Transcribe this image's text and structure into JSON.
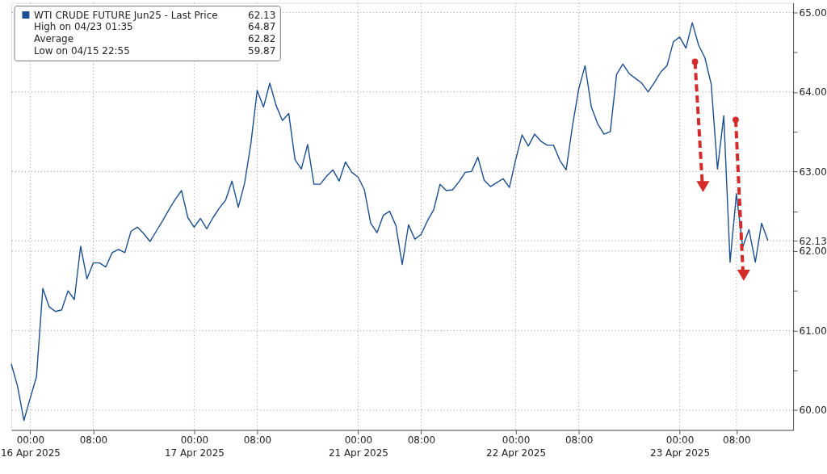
{
  "chart_data": {
    "type": "line",
    "categories": [
      null,
      null,
      null,
      "00:00\n16 Apr 2025",
      null,
      null,
      null,
      null,
      null,
      null,
      null,
      null,
      null,
      "08:00",
      null,
      null,
      null,
      null,
      null,
      null,
      null,
      null,
      null,
      null,
      null,
      null,
      null,
      null,
      null,
      "00:00\n17 Apr 2025",
      null,
      null,
      null,
      null,
      null,
      null,
      null,
      null,
      null,
      "08:00",
      null,
      null,
      null,
      null,
      null,
      null,
      null,
      null,
      null,
      null,
      null,
      null,
      null,
      null,
      null,
      "00:00\n21 Apr 2025",
      null,
      null,
      null,
      null,
      null,
      null,
      null,
      null,
      null,
      "08:00",
      null,
      null,
      null,
      null,
      null,
      null,
      null,
      null,
      null,
      null,
      null,
      null,
      null,
      null,
      "00:00\n22 Apr 2025",
      null,
      null,
      null,
      null,
      null,
      null,
      null,
      null,
      null,
      "08:00",
      null,
      null,
      null,
      null,
      null,
      null,
      null,
      null,
      null,
      null,
      null,
      null,
      null,
      null,
      null,
      "00:00\n23 Apr 2025",
      null,
      null,
      null,
      null,
      null,
      null,
      null,
      null,
      "08:00",
      null,
      null,
      null,
      null,
      null,
      null,
      null,
      null,
      null
    ],
    "series": [
      {
        "name": "WTI CRUDE FUTURE Jun25 - Last Price",
        "color": "#1c4f8f",
        "values": [
          60.58,
          60.3,
          59.87,
          60.15,
          60.42,
          61.53,
          61.3,
          61.24,
          61.26,
          61.5,
          61.39,
          62.06,
          61.65,
          61.85,
          61.85,
          61.8,
          61.98,
          62.02,
          61.98,
          62.25,
          62.3,
          62.22,
          62.12,
          62.25,
          62.38,
          62.52,
          62.65,
          62.76,
          62.42,
          62.3,
          62.41,
          62.28,
          62.42,
          62.54,
          62.64,
          62.88,
          62.55,
          62.85,
          63.35,
          64.02,
          63.81,
          64.11,
          63.83,
          63.64,
          63.73,
          63.15,
          63.03,
          63.34,
          62.84,
          62.84,
          62.94,
          63.02,
          62.88,
          63.12,
          62.99,
          62.93,
          62.77,
          62.35,
          62.23,
          62.45,
          62.5,
          62.32,
          61.83,
          62.33,
          62.15,
          62.21,
          62.38,
          62.52,
          62.84,
          62.76,
          62.77,
          62.87,
          62.99,
          63.0,
          63.18,
          62.89,
          62.81,
          62.86,
          62.91,
          62.8,
          63.15,
          63.46,
          63.32,
          63.47,
          63.38,
          63.33,
          63.33,
          63.14,
          63.02,
          63.57,
          64.04,
          64.33,
          63.81,
          63.6,
          63.47,
          63.5,
          64.22,
          64.35,
          64.23,
          64.17,
          64.11,
          64.0,
          64.12,
          64.25,
          64.33,
          64.63,
          64.69,
          64.55,
          64.87,
          64.59,
          64.43,
          64.1,
          63.03,
          63.7,
          61.86,
          62.72,
          62.05,
          62.27,
          61.86,
          62.35,
          62.13,
          null,
          null,
          null,
          null
        ]
      }
    ],
    "ylim": [
      59.75,
      65.12
    ],
    "yticks": [
      {
        "value": 60,
        "label": "60.00"
      },
      {
        "value": 60.5,
        "label": null
      },
      {
        "value": 61,
        "label": "61.00"
      },
      {
        "value": 61.5,
        "label": null
      },
      {
        "value": 62,
        "label": "62.00"
      },
      {
        "value": 62.13,
        "label": "62.13"
      },
      {
        "value": 62.5,
        "label": null
      },
      {
        "value": 63,
        "label": "63.00"
      },
      {
        "value": 63.5,
        "label": null
      },
      {
        "value": 64,
        "label": "64.00"
      },
      {
        "value": 64.5,
        "label": null
      },
      {
        "value": 65,
        "label": "65.00"
      }
    ],
    "annotations": [
      "62.13",
      "High on 04/23 01:35",
      "64.87",
      "Average",
      "62.82",
      "Low on 04/15 22:55",
      "59.87"
    ],
    "grid": true,
    "legend": "top left",
    "line_style": "solid",
    "marker": "none"
  }
}
